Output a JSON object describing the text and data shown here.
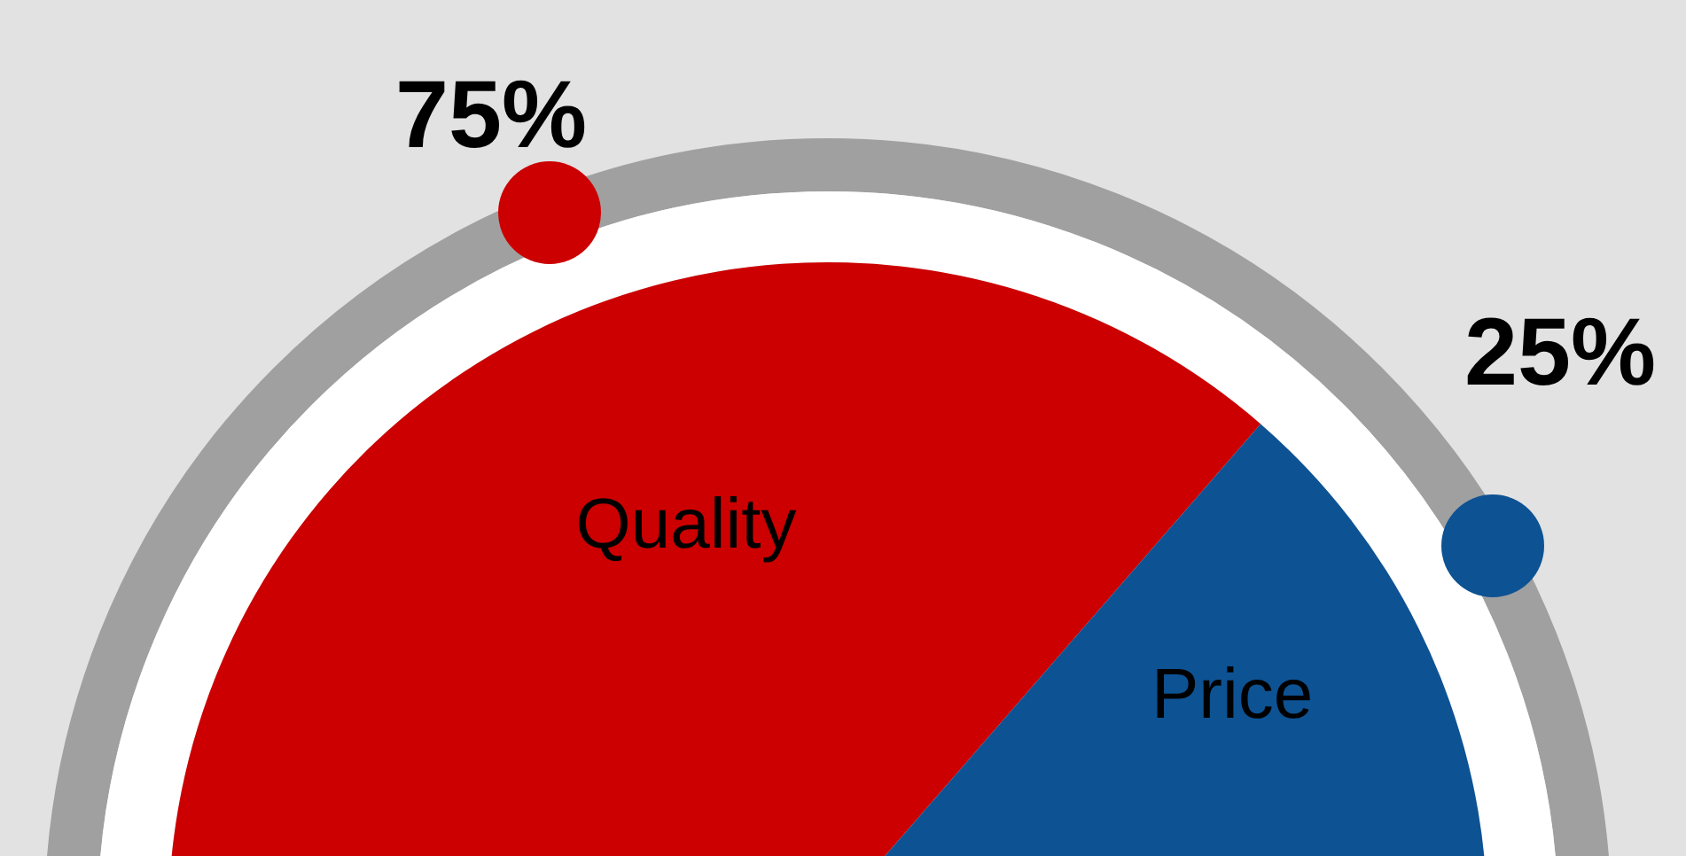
{
  "chart_data": {
    "type": "pie",
    "categories": [
      "Quality",
      "Price"
    ],
    "values": [
      75,
      25
    ],
    "colors": [
      "#cc0000",
      "#0d5293"
    ],
    "value_labels": [
      "75%",
      "25%"
    ]
  }
}
